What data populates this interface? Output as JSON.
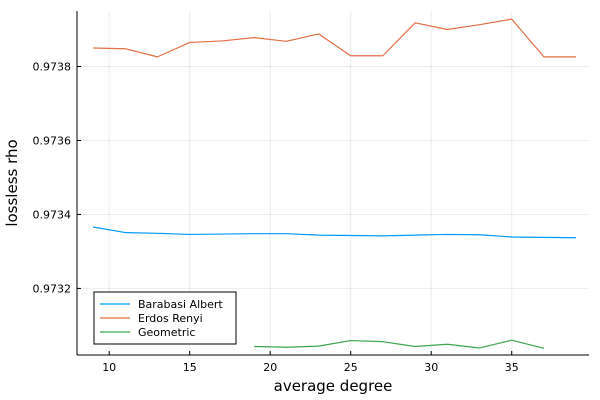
{
  "chart_data": {
    "type": "line",
    "xlabel": "average degree",
    "ylabel": "lossless rho",
    "xlim": [
      8.0,
      39.8
    ],
    "ylim": [
      0.97302,
      0.97395
    ],
    "xticks": [
      10,
      15,
      20,
      25,
      30,
      35
    ],
    "xtick_labels": [
      "10",
      "15",
      "20",
      "25",
      "30",
      "35"
    ],
    "yticks": [
      0.9732,
      0.9734,
      0.9736,
      0.9738
    ],
    "ytick_labels": [
      "0.9732",
      "0.9734",
      "0.9736",
      "0.9738"
    ],
    "grid": true,
    "legend_position": "bottom-left",
    "series": [
      {
        "name": "Barabasi Albert",
        "color": "#009AFA",
        "x": [
          9,
          11,
          13,
          15,
          17,
          19,
          21,
          23,
          25,
          27,
          29,
          31,
          33,
          35,
          37,
          39
        ],
        "y": [
          0.973366,
          0.973351,
          0.973349,
          0.973346,
          0.973347,
          0.973348,
          0.973348,
          0.973344,
          0.973343,
          0.973342,
          0.973344,
          0.973346,
          0.973345,
          0.973339,
          0.973338,
          0.973337
        ]
      },
      {
        "name": "Erdos Renyi",
        "color": "#E36F47",
        "x": [
          9,
          11,
          13,
          15,
          17,
          19,
          21,
          23,
          25,
          27,
          29,
          31,
          33,
          35,
          37,
          39
        ],
        "y": [
          0.97385,
          0.973848,
          0.973826,
          0.973865,
          0.973869,
          0.973878,
          0.973868,
          0.973888,
          0.973829,
          0.973829,
          0.973918,
          0.9739,
          0.973913,
          0.973928,
          0.973826,
          0.973826
        ]
      },
      {
        "name": "Geometric",
        "color": "#3EA44E",
        "x": [
          19,
          21,
          23,
          25,
          27,
          29,
          31,
          33,
          35,
          37
        ],
        "y": [
          0.973043,
          0.973041,
          0.973044,
          0.973059,
          0.973056,
          0.973043,
          0.973049,
          0.973039,
          0.97306,
          0.973038
        ]
      }
    ]
  }
}
